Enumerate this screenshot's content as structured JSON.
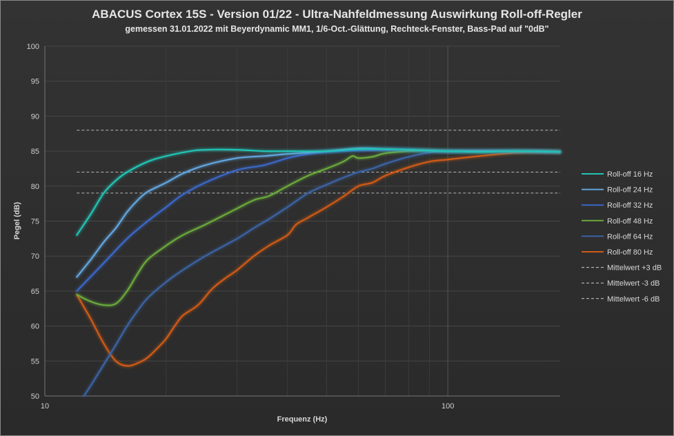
{
  "chart_data": {
    "type": "line",
    "title": "ABACUS Cortex 15S - Version 01/22 - Ultra-Nahfeldmessung Auswirkung Roll-off-Regler",
    "subtitle": "gemessen 31.01.2022  mit Beyerdynamic MM1, 1/6-Oct.-Glättung, Rechteck-Fenster, Bass-Pad auf \"0dB\"",
    "xlabel": "Frequenz  (Hz)",
    "ylabel": "Pegel (dB)",
    "x_scale": "log",
    "xlim": [
      10,
      190
    ],
    "ylim": [
      50,
      100
    ],
    "x_ticks": [
      10,
      100
    ],
    "y_ticks": [
      50,
      55,
      60,
      65,
      70,
      75,
      80,
      85,
      90,
      95,
      100
    ],
    "grid": true,
    "legend_position": "right",
    "series": [
      {
        "name": "Roll-off 16 Hz",
        "color": "#22c3b4",
        "style": "solid",
        "points": [
          [
            12,
            73
          ],
          [
            13,
            76
          ],
          [
            14,
            79
          ],
          [
            15,
            80.8
          ],
          [
            16,
            82
          ],
          [
            18,
            83.5
          ],
          [
            20,
            84.3
          ],
          [
            23,
            85
          ],
          [
            25,
            85.2
          ],
          [
            30,
            85.2
          ],
          [
            35,
            85
          ],
          [
            40,
            85
          ],
          [
            50,
            85
          ],
          [
            60,
            85.3
          ],
          [
            70,
            85.3
          ],
          [
            80,
            85.2
          ],
          [
            100,
            85
          ],
          [
            120,
            84.9
          ],
          [
            150,
            85
          ],
          [
            190,
            84.9
          ]
        ]
      },
      {
        "name": "Roll-off 24 Hz",
        "color": "#62a6e0",
        "style": "solid",
        "points": [
          [
            12,
            67
          ],
          [
            13,
            69.5
          ],
          [
            14,
            72
          ],
          [
            15,
            74
          ],
          [
            16,
            76.3
          ],
          [
            17,
            78
          ],
          [
            18,
            79.2
          ],
          [
            20,
            80.5
          ],
          [
            22,
            81.8
          ],
          [
            25,
            83
          ],
          [
            30,
            84
          ],
          [
            35,
            84.3
          ],
          [
            40,
            84.6
          ],
          [
            50,
            85
          ],
          [
            60,
            85.4
          ],
          [
            70,
            85.3
          ],
          [
            80,
            85.2
          ],
          [
            100,
            85
          ],
          [
            150,
            85
          ],
          [
            190,
            84.9
          ]
        ]
      },
      {
        "name": "Roll-off 32 Hz",
        "color": "#3a68c8",
        "style": "solid",
        "points": [
          [
            12,
            65
          ],
          [
            14,
            69
          ],
          [
            16,
            72.5
          ],
          [
            18,
            75
          ],
          [
            20,
            77
          ],
          [
            22,
            78.8
          ],
          [
            25,
            80.5
          ],
          [
            30,
            82.3
          ],
          [
            35,
            83
          ],
          [
            40,
            84
          ],
          [
            45,
            84.6
          ],
          [
            50,
            84.9
          ],
          [
            60,
            85.1
          ],
          [
            70,
            85.2
          ],
          [
            80,
            85.2
          ],
          [
            100,
            85
          ],
          [
            150,
            85
          ],
          [
            190,
            84.9
          ]
        ]
      },
      {
        "name": "Roll-off 48 Hz",
        "color": "#6aaa3a",
        "style": "solid",
        "points": [
          [
            12,
            64.5
          ],
          [
            13,
            63.5
          ],
          [
            14,
            63
          ],
          [
            15,
            63.2
          ],
          [
            16,
            65
          ],
          [
            17,
            67.5
          ],
          [
            18,
            69.5
          ],
          [
            20,
            71.5
          ],
          [
            22,
            73
          ],
          [
            25,
            74.5
          ],
          [
            30,
            76.8
          ],
          [
            33,
            78
          ],
          [
            36,
            78.6
          ],
          [
            40,
            80
          ],
          [
            45,
            81.5
          ],
          [
            50,
            82.5
          ],
          [
            55,
            83.5
          ],
          [
            58,
            84.3
          ],
          [
            60,
            84
          ],
          [
            65,
            84.2
          ],
          [
            70,
            84.7
          ],
          [
            80,
            85
          ],
          [
            90,
            85.1
          ],
          [
            100,
            85
          ],
          [
            150,
            85
          ],
          [
            190,
            84.9
          ]
        ]
      },
      {
        "name": "Roll-off 64 Hz",
        "color": "#3a64a4",
        "style": "solid",
        "points": [
          [
            12.5,
            50
          ],
          [
            13,
            51.5
          ],
          [
            14,
            54.5
          ],
          [
            15,
            57.3
          ],
          [
            16,
            60
          ],
          [
            17,
            62.2
          ],
          [
            18,
            64
          ],
          [
            20,
            66.3
          ],
          [
            22,
            68
          ],
          [
            25,
            70
          ],
          [
            30,
            72.5
          ],
          [
            33,
            74
          ],
          [
            36,
            75.3
          ],
          [
            40,
            77
          ],
          [
            45,
            79
          ],
          [
            50,
            80.2
          ],
          [
            55,
            81.2
          ],
          [
            60,
            82
          ],
          [
            65,
            82.5
          ],
          [
            70,
            83.2
          ],
          [
            80,
            84.2
          ],
          [
            90,
            84.8
          ],
          [
            100,
            85
          ],
          [
            150,
            85
          ],
          [
            190,
            84.9
          ]
        ]
      },
      {
        "name": "Roll-off 80 Hz",
        "color": "#d05a18",
        "style": "solid",
        "points": [
          [
            12,
            64.5
          ],
          [
            13,
            61
          ],
          [
            14,
            57.5
          ],
          [
            15,
            55
          ],
          [
            16,
            54.3
          ],
          [
            17,
            54.7
          ],
          [
            18,
            55.5
          ],
          [
            19,
            56.8
          ],
          [
            20,
            58.2
          ],
          [
            21,
            60
          ],
          [
            22,
            61.5
          ],
          [
            24,
            63
          ],
          [
            26,
            65.3
          ],
          [
            28,
            66.8
          ],
          [
            30,
            68
          ],
          [
            33,
            70
          ],
          [
            36,
            71.5
          ],
          [
            40,
            73
          ],
          [
            42,
            74.5
          ],
          [
            45,
            75.5
          ],
          [
            50,
            77
          ],
          [
            55,
            78.5
          ],
          [
            60,
            80
          ],
          [
            65,
            80.5
          ],
          [
            70,
            81.5
          ],
          [
            80,
            82.7
          ],
          [
            90,
            83.5
          ],
          [
            100,
            83.8
          ],
          [
            120,
            84.3
          ],
          [
            150,
            84.8
          ],
          [
            190,
            84.9
          ]
        ]
      },
      {
        "name": "Mittelwert +3 dB",
        "color": "#d0d0d0",
        "style": "dashed",
        "points": [
          [
            12,
            88
          ],
          [
            190,
            88
          ]
        ]
      },
      {
        "name": "Mittelwert -3 dB",
        "color": "#d0d0d0",
        "style": "dashed",
        "points": [
          [
            12,
            82
          ],
          [
            190,
            82
          ]
        ]
      },
      {
        "name": "Mittelwert -6 dB",
        "color": "#d0d0d0",
        "style": "dashed",
        "points": [
          [
            12,
            79
          ],
          [
            190,
            79
          ]
        ]
      }
    ]
  }
}
